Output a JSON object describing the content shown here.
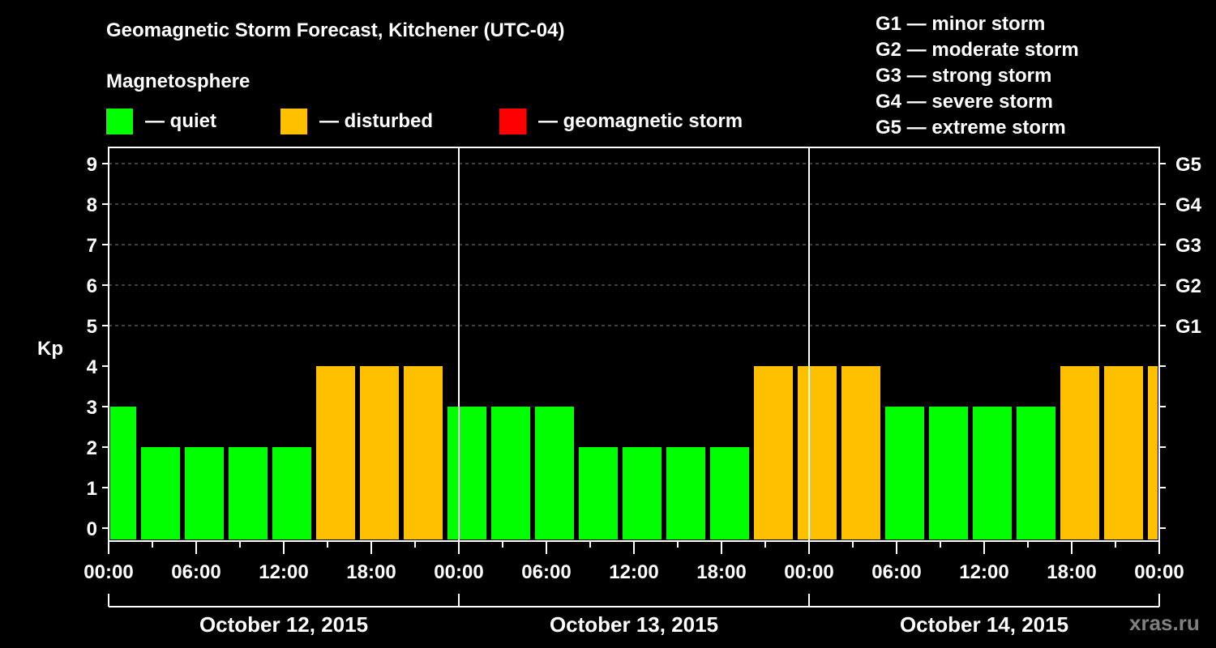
{
  "header": {
    "title": "Geomagnetic Storm Forecast, Kitchener (UTC-04)",
    "subtitle": "Magnetosphere"
  },
  "legend": [
    {
      "label": "— quiet",
      "color": "#00ff00"
    },
    {
      "label": "— disturbed",
      "color": "#ffc000"
    },
    {
      "label": "— geomagnetic storm",
      "color": "#ff0000"
    }
  ],
  "g_scale": [
    "G1 — minor storm",
    "G2 — moderate storm",
    "G3 — strong storm",
    "G4 — severe storm",
    "G5 — extreme storm"
  ],
  "watermark": "xras.ru",
  "colors": {
    "background": "#000000",
    "axis": "#ffffff",
    "grid": "#808080",
    "quiet": "#00ff00",
    "disturbed": "#ffc000",
    "storm": "#ff0000"
  },
  "chart_data": {
    "type": "bar",
    "title": "Geomagnetic Storm Forecast, Kitchener (UTC-04)",
    "xlabel": "",
    "ylabel": "Kp",
    "ylim": [
      0,
      9
    ],
    "y_ticks": [
      0,
      1,
      2,
      3,
      4,
      5,
      6,
      7,
      8,
      9
    ],
    "right_axis_ticks": [
      {
        "kp": 5,
        "label": "G1"
      },
      {
        "kp": 6,
        "label": "G2"
      },
      {
        "kp": 7,
        "label": "G3"
      },
      {
        "kp": 8,
        "label": "G4"
      },
      {
        "kp": 9,
        "label": "G5"
      }
    ],
    "grid": "dashed horizontal at Kp 5-9",
    "x_tick_labels": [
      "00:00",
      "06:00",
      "12:00",
      "18:00",
      "00:00",
      "06:00",
      "12:00",
      "18:00",
      "00:00",
      "06:00",
      "12:00",
      "18:00",
      "00:00"
    ],
    "dates": [
      "October 12, 2015",
      "October 13, 2015",
      "October 14, 2015"
    ],
    "interval_hours": 3,
    "categories": [
      "Oct 12 00:00",
      "Oct 12 03:00",
      "Oct 12 06:00",
      "Oct 12 09:00",
      "Oct 12 12:00",
      "Oct 12 15:00",
      "Oct 12 18:00",
      "Oct 12 21:00",
      "Oct 13 00:00",
      "Oct 13 03:00",
      "Oct 13 06:00",
      "Oct 13 09:00",
      "Oct 13 12:00",
      "Oct 13 15:00",
      "Oct 13 18:00",
      "Oct 13 21:00",
      "Oct 14 00:00",
      "Oct 14 03:00",
      "Oct 14 06:00",
      "Oct 14 09:00",
      "Oct 14 12:00",
      "Oct 14 15:00",
      "Oct 14 18:00",
      "Oct 14 21:00",
      "Oct 15 00:00"
    ],
    "values": [
      3,
      2,
      2,
      2,
      2,
      4,
      4,
      4,
      3,
      3,
      3,
      2,
      2,
      2,
      2,
      4,
      4,
      4,
      3,
      3,
      3,
      3,
      4,
      4,
      4
    ],
    "status": [
      "quiet",
      "quiet",
      "quiet",
      "quiet",
      "quiet",
      "disturbed",
      "disturbed",
      "disturbed",
      "quiet",
      "quiet",
      "quiet",
      "quiet",
      "quiet",
      "quiet",
      "quiet",
      "disturbed",
      "disturbed",
      "disturbed",
      "quiet",
      "quiet",
      "quiet",
      "quiet",
      "disturbed",
      "disturbed",
      "disturbed"
    ],
    "legend_position": "top"
  }
}
